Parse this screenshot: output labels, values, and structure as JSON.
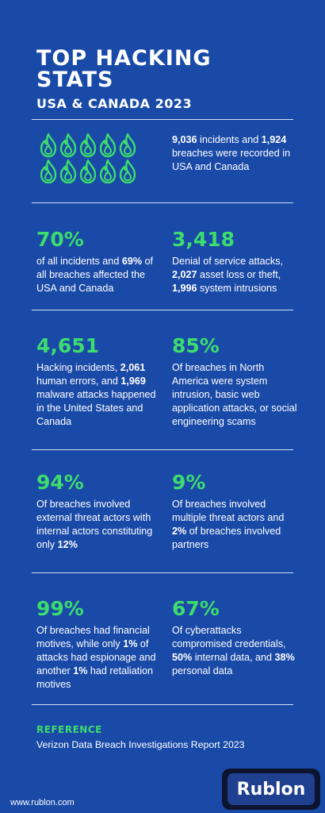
{
  "header": {
    "title": "TOP HACKING STATS",
    "subtitle": "USA & CANADA 2023"
  },
  "intro": {
    "icon": "flame-icon",
    "icon_count": 10,
    "text_html": "<b>9,036</b> incidents and <b>1,924</b> breaches were recorded in USA and Canada"
  },
  "stats": [
    {
      "value": "70%",
      "text_html": "of all incidents and <b>69%</b> of all breaches affected the USA and Canada"
    },
    {
      "value": "3,418",
      "text_html": "Denial of service attacks, <b>2,027</b> asset loss or theft, <b>1,996</b> system intrusions"
    },
    {
      "value": "4,651",
      "text_html": "Hacking incidents, <b>2,061</b> human errors, and <b>1,969</b> malware attacks happened in the United States and Canada"
    },
    {
      "value": "85%",
      "text_html": "Of breaches in North America were system intrusion, basic web application attacks, or social engineering scams"
    },
    {
      "value": "94%",
      "text_html": "Of breaches involved external threat actors with internal actors constituting only <b>12%</b>"
    },
    {
      "value": "9%",
      "text_html": "Of breaches involved multiple threat actors and <b>2%</b> of breaches involved partners"
    },
    {
      "value": "99%",
      "text_html": "Of breaches had financial motives, while only <b>1%</b> of attacks had espionage and another <b>1%</b> had retaliation motives"
    },
    {
      "value": "67%",
      "text_html": "Of cyberattacks compromised credentials, <b>50%</b> internal data, and <b>38%</b> personal data"
    }
  ],
  "reference": {
    "label": "REFERENCE",
    "text": "Verizon Data Breach Investigations Report 2023"
  },
  "footer": {
    "url": "www.rublon.com",
    "logo": "Rublon"
  },
  "colors": {
    "background": "#1a4aa8",
    "accent": "#3ddc6e",
    "text": "#ffffff"
  }
}
